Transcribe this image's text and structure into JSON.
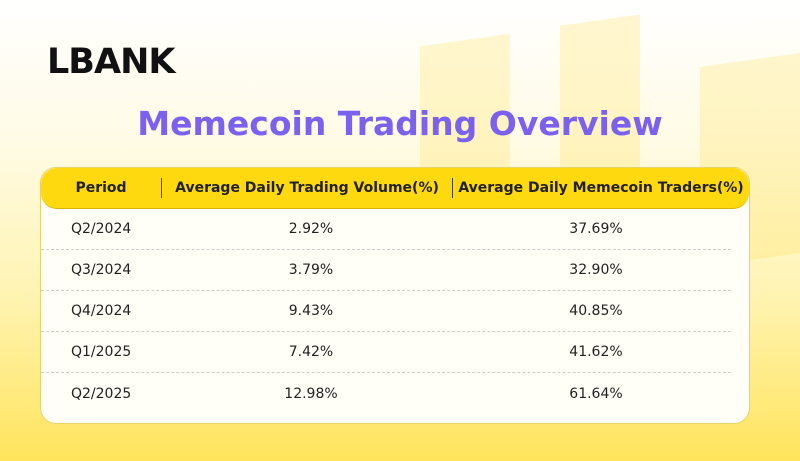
{
  "brand": "LBANK",
  "title": "Memecoin Trading Overview",
  "chart_data": {
    "type": "table",
    "title": "Memecoin Trading Overview",
    "columns": [
      "Period",
      "Average Daily Trading Volume(%)",
      "Average Daily Memecoin Traders(%)"
    ],
    "rows": [
      [
        "Q2/2024",
        "2.92%",
        "37.69%"
      ],
      [
        "Q3/2024",
        "3.79%",
        "32.90%"
      ],
      [
        "Q4/2024",
        "9.43%",
        "40.85%"
      ],
      [
        "Q1/2025",
        "7.42%",
        "41.62%"
      ],
      [
        "Q2/2025",
        "12.98%",
        "61.64%"
      ]
    ]
  },
  "colors": {
    "accent": "#ffd90f",
    "title": "#7b61f0"
  }
}
